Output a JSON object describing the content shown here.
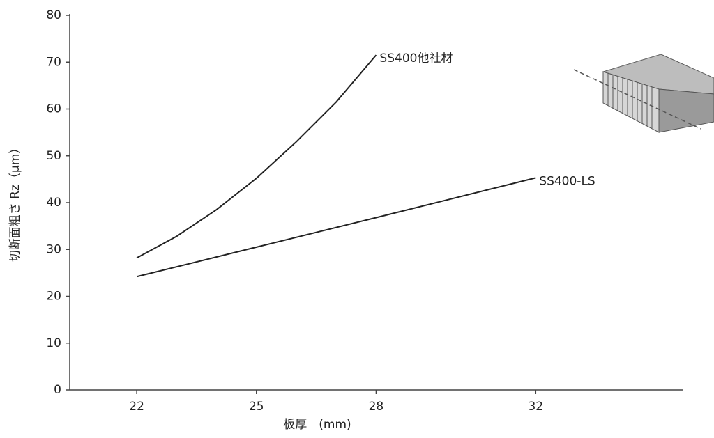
{
  "chart_data": {
    "type": "line",
    "y_label": "切断面粗さ Rz（μm）",
    "x_label": "板厚　(mm)",
    "xlim": [
      20.32,
      35.7
    ],
    "xticks": [
      22,
      25,
      28,
      32
    ],
    "ylim": [
      0,
      80
    ],
    "yticks": [
      0,
      10,
      20,
      30,
      40,
      50,
      60,
      70,
      80
    ],
    "grid": false,
    "series": [
      {
        "name": "SS400他社材",
        "color": "#222222",
        "x": [
          22,
          23,
          24,
          25,
          26,
          27,
          28
        ],
        "values": [
          28.2,
          32.8,
          38.5,
          45.2,
          53,
          61.5,
          71.5
        ]
      },
      {
        "name": "SS400-LS",
        "color": "#222222",
        "x": [
          22,
          25,
          28,
          32
        ],
        "values": [
          24.2,
          30.5,
          36.8,
          45.3
        ]
      }
    ]
  }
}
